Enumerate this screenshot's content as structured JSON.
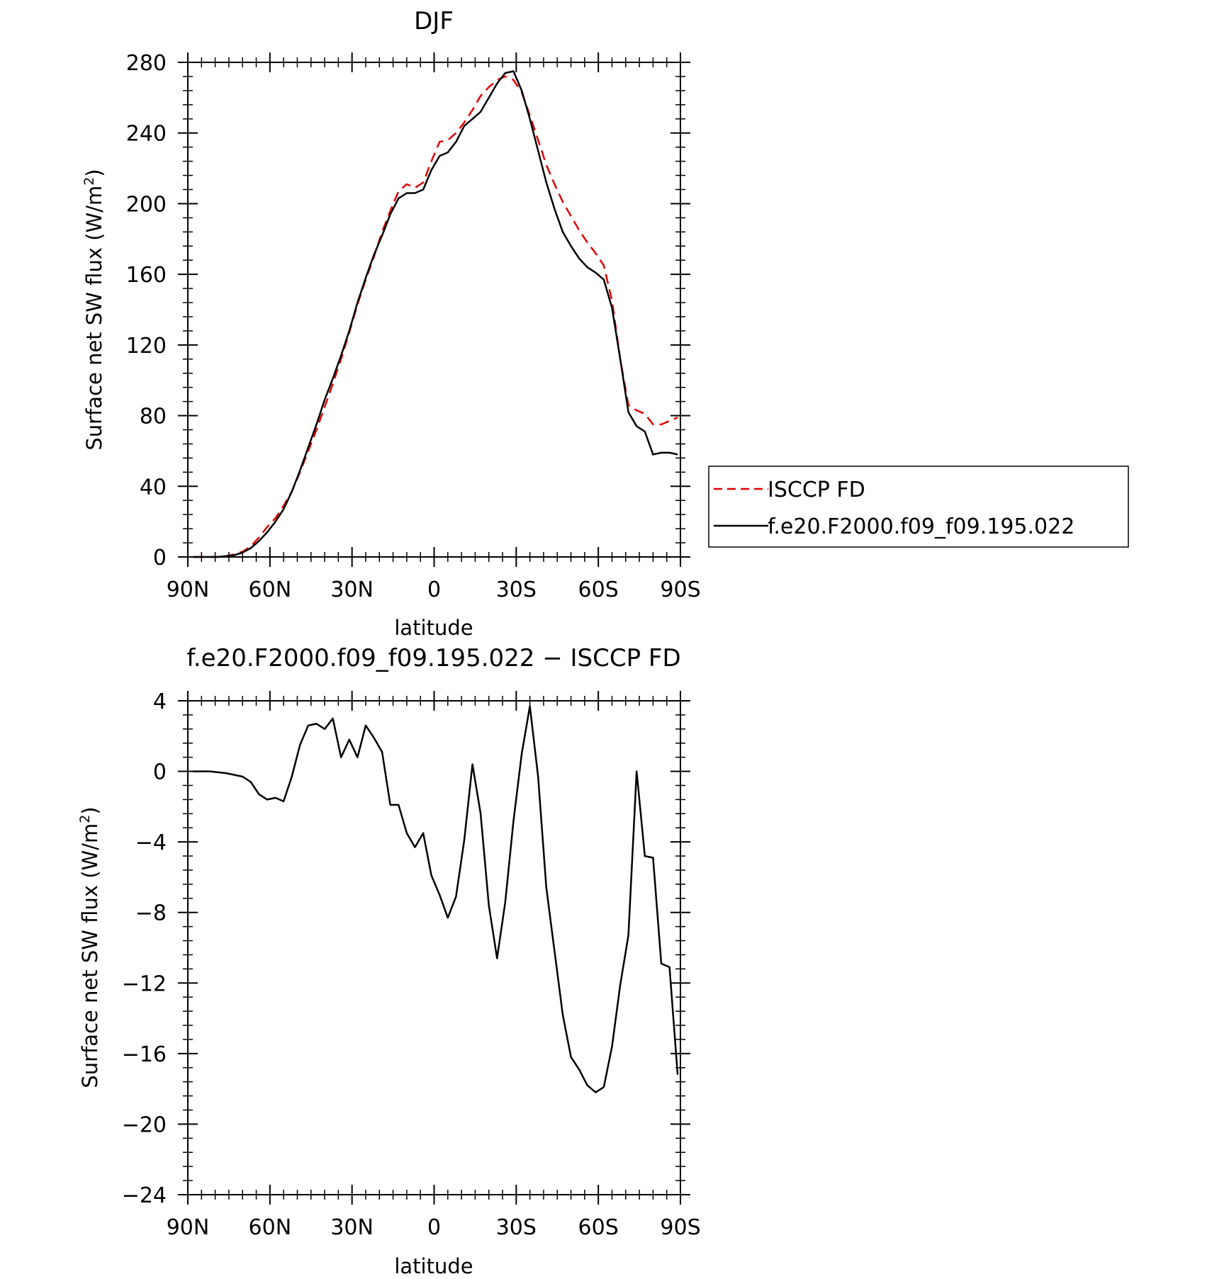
{
  "chart_data": [
    {
      "type": "line",
      "title": "DJF",
      "xlabel": "latitude",
      "ylabel": "Surface net SW flux (W/m²)",
      "ylabel_parts": {
        "before": "Surface net SW flux (W/m",
        "sup": "2",
        "after": ")"
      },
      "xlim": [
        90,
        -90
      ],
      "ylim": [
        0,
        280
      ],
      "x_ticks": [
        90,
        60,
        30,
        0,
        -30,
        -60,
        -90
      ],
      "x_tick_labels": [
        "90N",
        "60N",
        "30N",
        "0",
        "30S",
        "60S",
        "90S"
      ],
      "y_ticks": [
        0,
        40,
        80,
        120,
        160,
        200,
        240,
        280
      ],
      "y_tick_labels": [
        "0",
        "40",
        "80",
        "120",
        "160",
        "200",
        "240",
        "280"
      ],
      "legend_position": "right",
      "series": [
        {
          "name": "ISCCP FD",
          "color": "#e00000",
          "dash": "dashed",
          "x": [
            88,
            85,
            82,
            79,
            76,
            73,
            70,
            67,
            64,
            61,
            58,
            55,
            52,
            49,
            46,
            43,
            40,
            37,
            34,
            31,
            28,
            25,
            22,
            19,
            16,
            13,
            10,
            7,
            4,
            1,
            -2,
            -5,
            -8,
            -11,
            -14,
            -17,
            -20,
            -23,
            -26,
            -29,
            -32,
            -35,
            -38,
            -41,
            -44,
            -47,
            -50,
            -53,
            -56,
            -59,
            -62,
            -65,
            -68,
            -71,
            -74,
            -77,
            -80,
            -83,
            -86,
            -89
          ],
          "y": [
            0,
            0,
            0,
            0,
            0.5,
            1.5,
            3,
            6,
            11,
            17,
            22,
            29,
            37,
            48,
            60,
            72,
            85,
            98,
            112,
            127,
            143,
            157,
            170,
            184,
            196,
            207,
            211,
            209,
            212,
            224,
            235,
            236,
            240,
            246,
            253,
            261,
            266,
            270,
            272,
            270,
            263,
            250,
            236,
            222,
            211,
            201,
            193,
            185,
            178,
            172,
            165,
            145,
            112,
            86,
            83,
            81,
            75,
            75,
            77,
            79
          ]
        },
        {
          "name": "f.e20.F2000.f09_f09.195.022",
          "color": "#000000",
          "dash": "solid",
          "x": [
            88,
            85,
            82,
            79,
            76,
            73,
            70,
            67,
            64,
            61,
            58,
            55,
            52,
            49,
            46,
            43,
            40,
            37,
            34,
            31,
            28,
            25,
            22,
            19,
            16,
            13,
            10,
            7,
            4,
            1,
            -2,
            -5,
            -8,
            -11,
            -14,
            -17,
            -20,
            -23,
            -26,
            -29,
            -32,
            -35,
            -38,
            -41,
            -44,
            -47,
            -50,
            -53,
            -56,
            -59,
            -62,
            -65,
            -68,
            -71,
            -74,
            -77,
            -80,
            -83,
            -86,
            -89
          ],
          "y": [
            0,
            0,
            0,
            0,
            0.5,
            1,
            2.5,
            5,
            9,
            14,
            20,
            27,
            37,
            49,
            62,
            75,
            89,
            101,
            114,
            128,
            144,
            158,
            171,
            182,
            194,
            203,
            206,
            206,
            208,
            219,
            227,
            229,
            235,
            244,
            248,
            252,
            260,
            268,
            274,
            275,
            264,
            248,
            230,
            212,
            197,
            184,
            176,
            169,
            164,
            161,
            157,
            141,
            112,
            82,
            74,
            71,
            58,
            59,
            59,
            58
          ]
        }
      ]
    },
    {
      "type": "line",
      "title": "f.e20.F2000.f09_f09.195.022 − ISCCP FD",
      "xlabel": "latitude",
      "ylabel": "Surface net SW flux (W/m²)",
      "ylabel_parts": {
        "before": "Surface net SW flux (W/m",
        "sup": "2",
        "after": ")"
      },
      "xlim": [
        90,
        -90
      ],
      "ylim": [
        -24,
        4
      ],
      "x_ticks": [
        90,
        60,
        30,
        0,
        -30,
        -60,
        -90
      ],
      "x_tick_labels": [
        "90N",
        "60N",
        "30N",
        "0",
        "30S",
        "60S",
        "90S"
      ],
      "y_ticks": [
        -24,
        -20,
        -16,
        -12,
        -8,
        -4,
        0,
        4
      ],
      "y_tick_labels": [
        "−24",
        "−20",
        "−16",
        "−12",
        "−8",
        "−4",
        "0",
        "4"
      ],
      "series": [
        {
          "color": "#000000",
          "dash": "solid",
          "x": [
            88,
            82,
            76,
            70,
            67,
            64,
            61,
            58,
            55,
            52,
            49,
            46,
            43,
            40,
            37,
            34,
            31,
            28,
            25,
            22,
            19,
            16,
            13,
            10,
            7,
            4,
            1,
            -2,
            -5,
            -8,
            -11,
            -14,
            -17,
            -20,
            -23,
            -26,
            -29,
            -32,
            -35,
            -38,
            -41,
            -44,
            -47,
            -50,
            -53,
            -56,
            -59,
            -62,
            -65,
            -68,
            -71,
            -74,
            -77,
            -80,
            -83,
            -86,
            -89
          ],
          "y": [
            0,
            0,
            -0.1,
            -0.3,
            -0.6,
            -1.3,
            -1.6,
            -1.5,
            -1.7,
            -0.3,
            1.5,
            2.6,
            2.7,
            2.4,
            3.0,
            0.8,
            1.8,
            0.8,
            2.6,
            1.9,
            1.1,
            -1.9,
            -1.9,
            -3.5,
            -4.3,
            -3.5,
            -5.9,
            -7.0,
            -8.3,
            -7.1,
            -3.9,
            0.4,
            -2.4,
            -7.6,
            -10.6,
            -7.4,
            -2.8,
            1.0,
            3.7,
            -0.3,
            -6.6,
            -10.2,
            -13.8,
            -16.2,
            -16.9,
            -17.8,
            -18.2,
            -17.9,
            -15.6,
            -12.1,
            -9.3,
            0.0,
            -4.8,
            -4.9,
            -10.9,
            -11.1,
            -17.2
          ]
        }
      ]
    }
  ],
  "legend": {
    "entries": [
      {
        "label": "ISCCP FD",
        "color": "#e00000",
        "dash": "dashed"
      },
      {
        "label": "f.e20.F2000.f09_f09.195.022",
        "color": "#000000",
        "dash": "solid"
      }
    ]
  }
}
